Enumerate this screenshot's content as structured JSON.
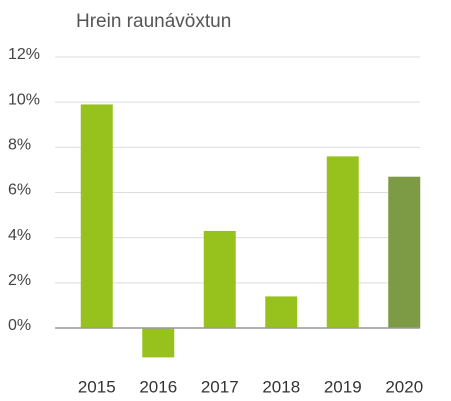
{
  "chart_data": {
    "type": "bar",
    "title": "Hrein raunávöxtun",
    "categories": [
      "2015",
      "2016",
      "2017",
      "2018",
      "2019",
      "2020"
    ],
    "values": [
      9.9,
      -1.3,
      4.3,
      1.4,
      7.6,
      6.7
    ],
    "colors": [
      "#97c21e",
      "#97c21e",
      "#97c21e",
      "#97c21e",
      "#97c21e",
      "#7d9a45"
    ],
    "ylim": [
      -2,
      12
    ],
    "yticks": [
      {
        "value": 0,
        "label": "0%"
      },
      {
        "value": 2,
        "label": "2%"
      },
      {
        "value": 4,
        "label": "4%"
      },
      {
        "value": 6,
        "label": "6%"
      },
      {
        "value": 8,
        "label": "8%"
      },
      {
        "value": 10,
        "label": "10%"
      },
      {
        "value": 12,
        "label": "12%"
      }
    ],
    "grid": true
  }
}
